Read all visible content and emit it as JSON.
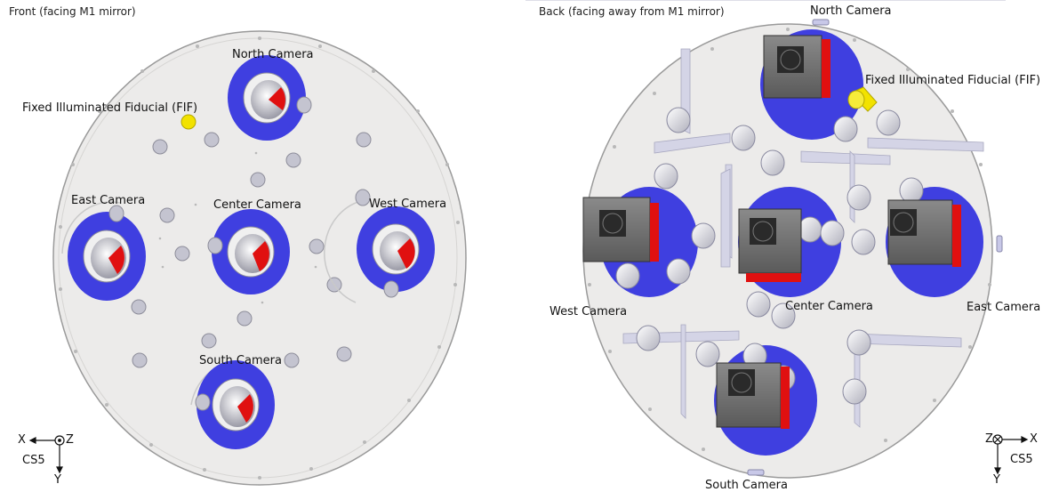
{
  "front": {
    "title": "Front (facing M1 mirror)",
    "labels": {
      "north": "North Camera",
      "fif": "Fixed Illuminated Fiducial (FIF)",
      "east": "East Camera",
      "center": "Center Camera",
      "west": "West Camera",
      "south": "South Camera"
    },
    "axes": {
      "x": "X",
      "y": "Y",
      "z": "Z",
      "cs": "CS5"
    }
  },
  "back": {
    "title": "Back (facing away from M1 mirror)",
    "labels": {
      "north": "North Camera",
      "fif": "Fixed Illuminated Fiducial (FIF)",
      "west": "West Camera",
      "center": "Center Camera",
      "east": "East Camera",
      "south": "South Camera"
    },
    "axes": {
      "x": "X",
      "y": "Y",
      "z": "Z",
      "cs": "CS5"
    }
  },
  "colors": {
    "plate": "#ecebea",
    "plate_edge": "#9a9a9a",
    "mount_blue": "#3f3fe0",
    "lens_red": "#e01010",
    "fif_yellow": "#f2e200",
    "camera_body": "#6e6e6e"
  }
}
